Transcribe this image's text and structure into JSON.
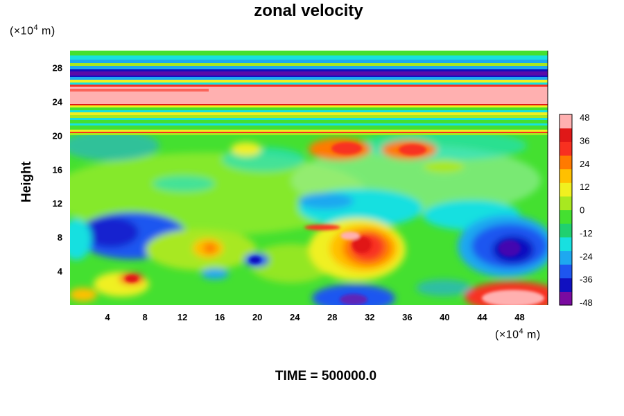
{
  "chart_data": {
    "type": "heatmap",
    "title": "zonal velocity",
    "ylabel": "Height",
    "x_unit": "(×10⁴ m)",
    "y_unit": "(×10⁴ m)",
    "footer": "TIME = 500000.0",
    "x_ticks": [
      4,
      8,
      12,
      16,
      20,
      24,
      28,
      32,
      36,
      40,
      44,
      48
    ],
    "y_ticks": [
      4,
      8,
      12,
      16,
      20,
      24,
      28
    ],
    "xlim": [
      0,
      51
    ],
    "ylim": [
      0,
      30
    ],
    "colorbar": {
      "ticks": [
        48,
        36,
        24,
        12,
        0,
        -12,
        -24,
        -36,
        -48
      ],
      "range": [
        -48,
        48
      ],
      "colors": [
        "#7a0aa0",
        "#1010c0",
        "#1e56f0",
        "#1ea8f0",
        "#18e0e0",
        "#20d070",
        "#44e030",
        "#a8e820",
        "#f0f020",
        "#ffc000",
        "#ff7a00",
        "#f83020",
        "#e01818",
        "#ffb0b0"
      ]
    },
    "features": [
      {
        "x": 25,
        "y": 24.6,
        "value": 48
      },
      {
        "x": 25,
        "y": 26.8,
        "value": -40
      },
      {
        "x": 8,
        "y": 9,
        "value": -30
      },
      {
        "x": 31,
        "y": 7,
        "value": 42
      },
      {
        "x": 46,
        "y": 7.5,
        "value": -40
      },
      {
        "x": 47,
        "y": 1.2,
        "value": 48
      },
      {
        "x": 31,
        "y": 1,
        "value": -40
      },
      {
        "x": 36,
        "y": 18.5,
        "value": 32
      },
      {
        "x": 29,
        "y": 18.5,
        "value": 28
      },
      {
        "x": 6,
        "y": 3,
        "value": 30
      },
      {
        "x": 15,
        "y": 6.5,
        "value": 26
      },
      {
        "x": 20,
        "y": 5,
        "value": -36
      }
    ]
  }
}
